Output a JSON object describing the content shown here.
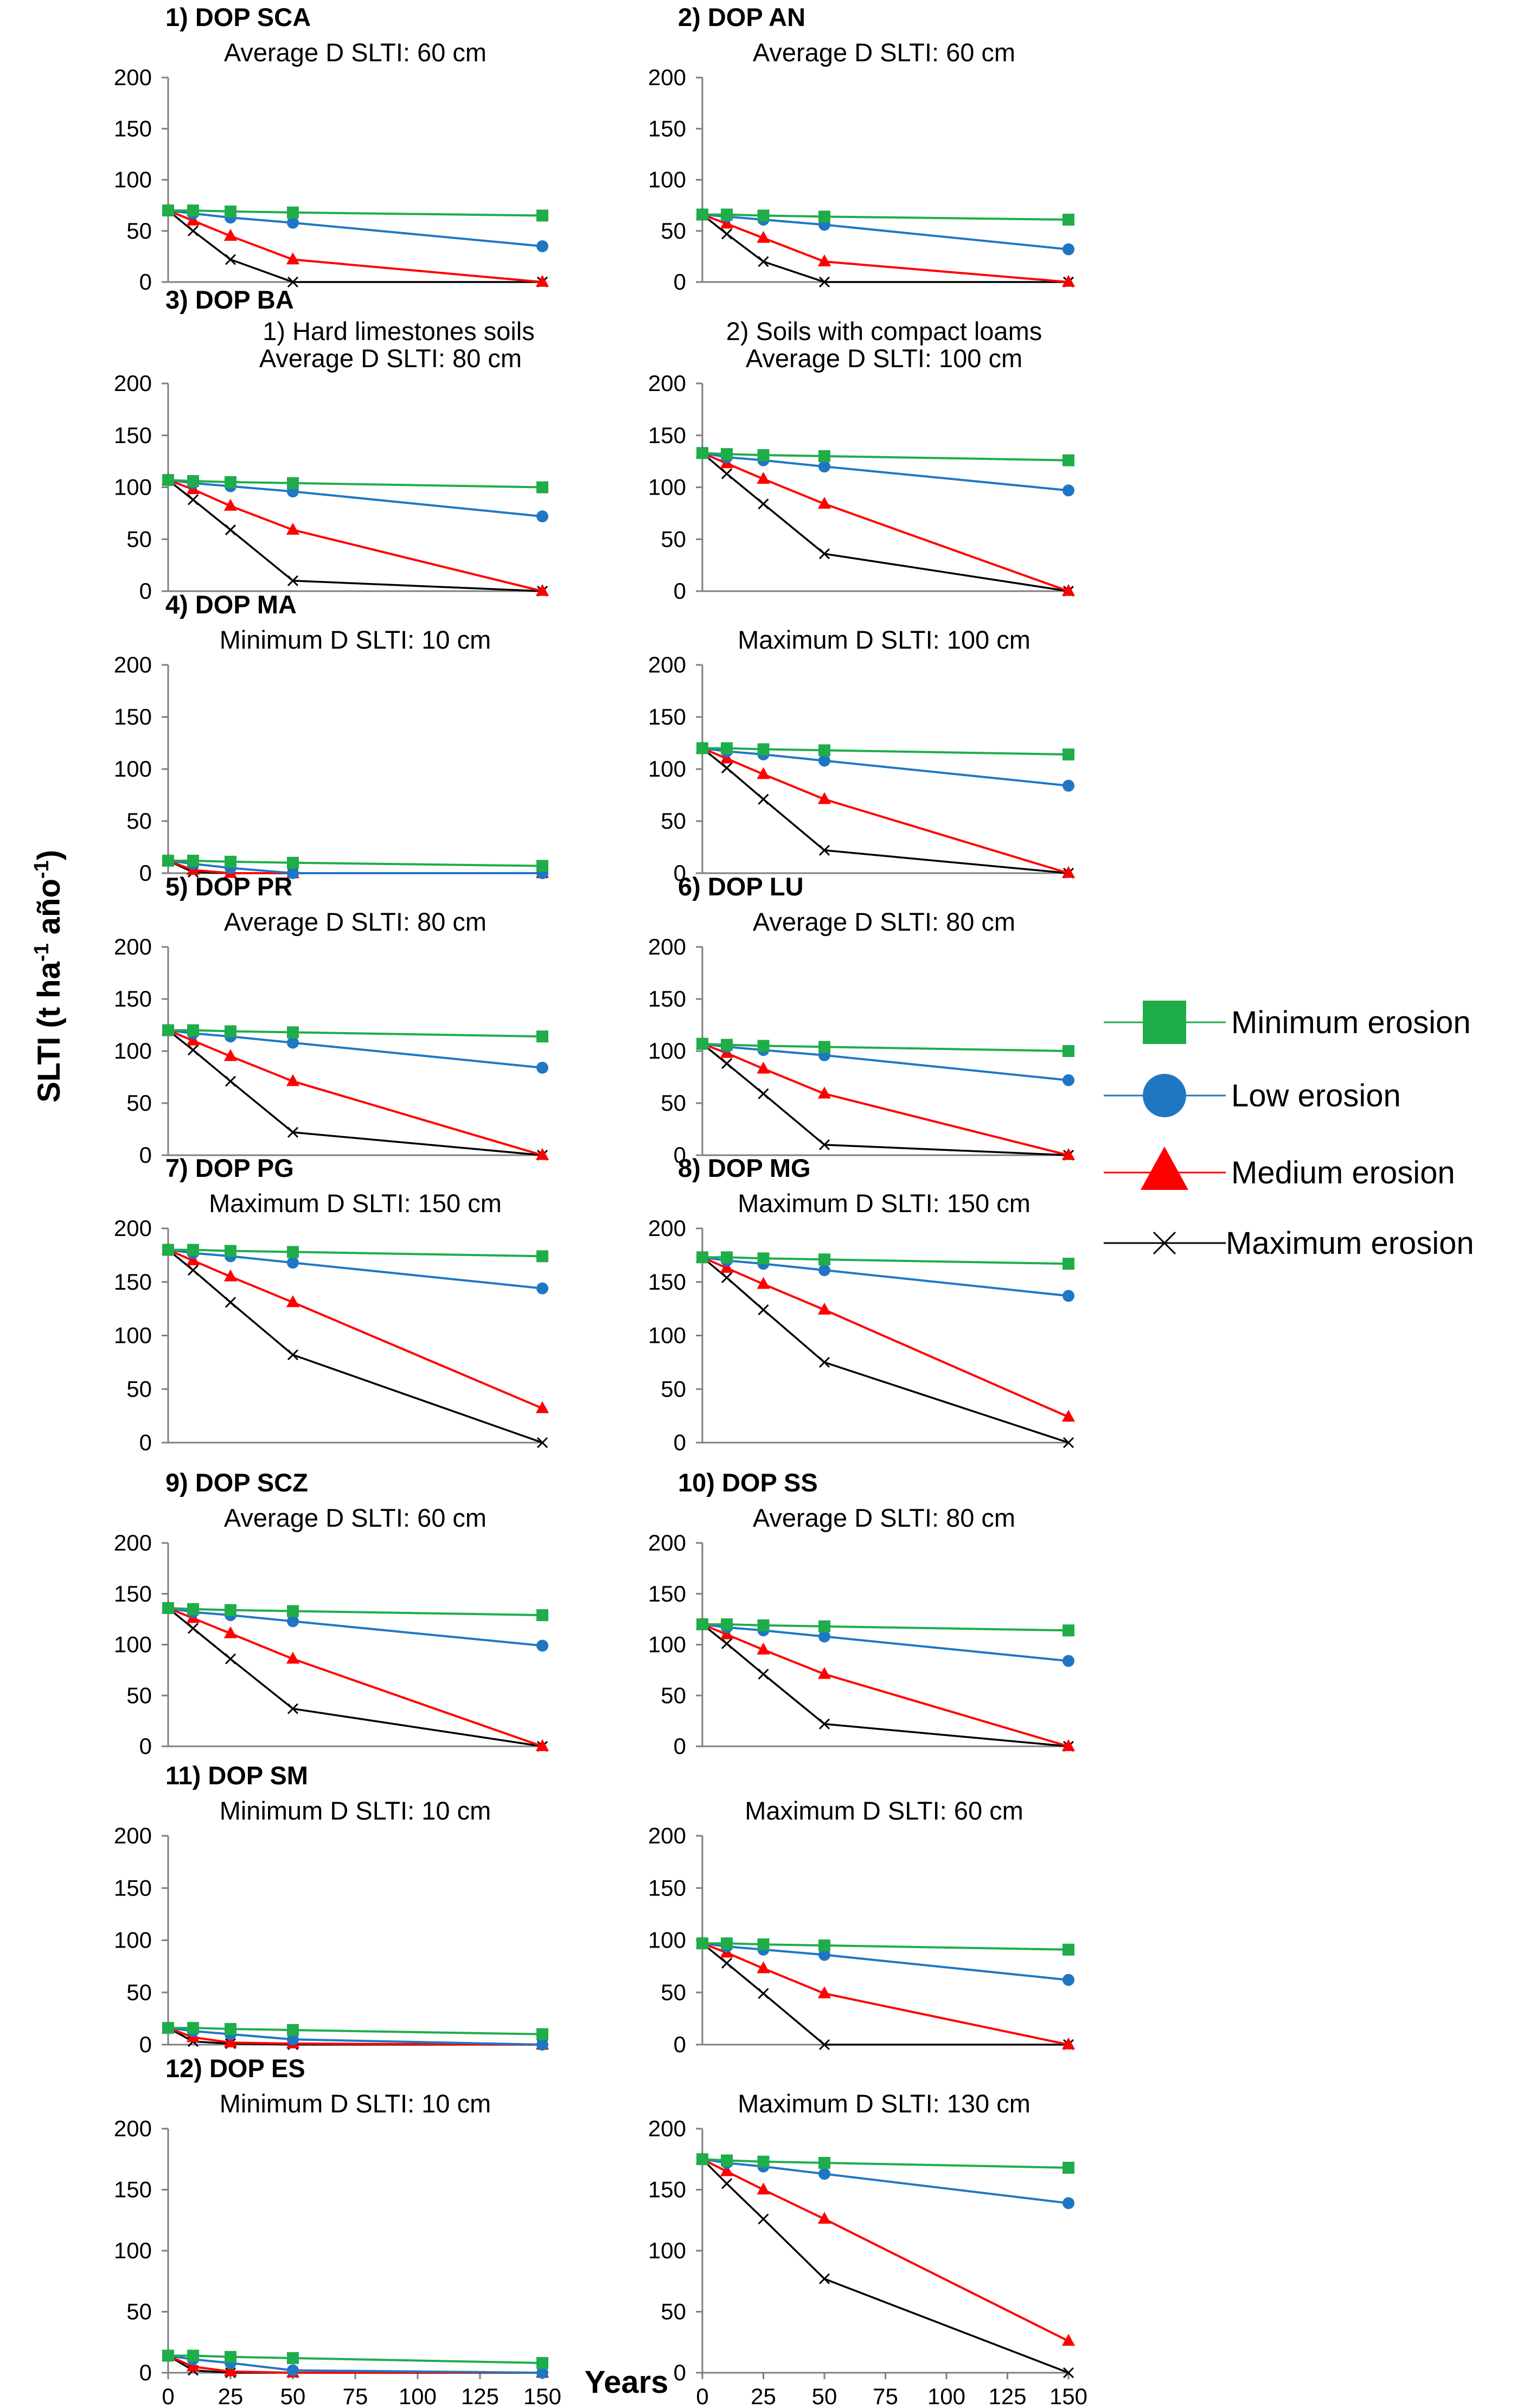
{
  "figure": {
    "ylabel_main": "SLTI (t ha",
    "ylabel_sup1": "-1",
    "ylabel_mid": " año",
    "ylabel_sup2": "-1",
    "ylabel_end": ")",
    "xlabel": "Years"
  },
  "legend": [
    {
      "label": "Minimum erosion",
      "color": "#1fad4a",
      "marker": "square"
    },
    {
      "label": "Low erosion",
      "color": "#1f77c4",
      "marker": "circle"
    },
    {
      "label": "Medium erosion",
      "color": "#ff0000",
      "marker": "triangle"
    },
    {
      "label": "Maximum erosion",
      "color": "#000000",
      "marker": "x"
    }
  ],
  "chart_data": [
    {
      "id": "p1",
      "type": "line",
      "title": "1) DOP SCA",
      "subtitle": "Average D SLTI: 60 cm",
      "x": [
        0,
        10,
        25,
        50,
        150
      ],
      "ylim": [
        0,
        200
      ],
      "yticks": [
        0,
        50,
        100,
        150,
        200
      ],
      "show_xticks": false,
      "series": [
        {
          "name": "Minimum erosion",
          "values": [
            70,
            70,
            69,
            68,
            65
          ]
        },
        {
          "name": "Low erosion",
          "values": [
            70,
            67,
            63,
            58,
            35
          ]
        },
        {
          "name": "Medium erosion",
          "values": [
            70,
            60,
            45,
            22,
            0
          ]
        },
        {
          "name": "Maximum erosion",
          "values": [
            70,
            50,
            22,
            0,
            0
          ]
        }
      ]
    },
    {
      "id": "p2",
      "type": "line",
      "title": "2) DOP AN",
      "subtitle": "Average D SLTI: 60 cm",
      "x": [
        0,
        10,
        25,
        50,
        150
      ],
      "ylim": [
        0,
        200
      ],
      "yticks": [
        0,
        50,
        100,
        150,
        200
      ],
      "show_xticks": false,
      "series": [
        {
          "name": "Minimum erosion",
          "values": [
            66,
            66,
            65,
            64,
            61
          ]
        },
        {
          "name": "Low erosion",
          "values": [
            66,
            64,
            61,
            56,
            32
          ]
        },
        {
          "name": "Medium erosion",
          "values": [
            66,
            57,
            43,
            20,
            0
          ]
        },
        {
          "name": "Maximum erosion",
          "values": [
            66,
            47,
            20,
            0,
            0
          ]
        }
      ]
    },
    {
      "id": "p3a",
      "type": "line",
      "title": "3) DOP BA",
      "subtitle": "1) Hard limestones soils",
      "subtitle2": "Average D SLTI: 80 cm",
      "x": [
        0,
        10,
        25,
        50,
        150
      ],
      "ylim": [
        0,
        200
      ],
      "yticks": [
        0,
        50,
        100,
        150,
        200
      ],
      "show_xticks": false,
      "series": [
        {
          "name": "Minimum erosion",
          "values": [
            107,
            106,
            105,
            104,
            100
          ]
        },
        {
          "name": "Low erosion",
          "values": [
            107,
            104,
            101,
            96,
            72
          ]
        },
        {
          "name": "Medium erosion",
          "values": [
            107,
            98,
            82,
            59,
            0
          ]
        },
        {
          "name": "Maximum erosion",
          "values": [
            107,
            88,
            59,
            10,
            0
          ]
        }
      ]
    },
    {
      "id": "p3b",
      "type": "line",
      "title": "",
      "subtitle": "2) Soils with compact loams",
      "subtitle2": "Average D SLTI: 100 cm",
      "x": [
        0,
        10,
        25,
        50,
        150
      ],
      "ylim": [
        0,
        200
      ],
      "yticks": [
        0,
        50,
        100,
        150,
        200
      ],
      "show_xticks": false,
      "series": [
        {
          "name": "Minimum erosion",
          "values": [
            133,
            132,
            131,
            130,
            126
          ]
        },
        {
          "name": "Low erosion",
          "values": [
            133,
            129,
            126,
            120,
            97
          ]
        },
        {
          "name": "Medium erosion",
          "values": [
            133,
            123,
            108,
            84,
            0
          ]
        },
        {
          "name": "Maximum erosion",
          "values": [
            133,
            113,
            84,
            36,
            0
          ]
        }
      ]
    },
    {
      "id": "p4a",
      "type": "line",
      "title": "4) DOP MA",
      "subtitle": "Minimum D SLTI: 10 cm",
      "x": [
        0,
        10,
        25,
        50,
        150
      ],
      "ylim": [
        0,
        200
      ],
      "yticks": [
        0,
        50,
        100,
        150,
        200
      ],
      "show_xticks": false,
      "series": [
        {
          "name": "Minimum erosion",
          "values": [
            12,
            12,
            11,
            10,
            7
          ]
        },
        {
          "name": "Low erosion",
          "values": [
            12,
            9,
            5,
            0,
            0
          ]
        },
        {
          "name": "Medium erosion",
          "values": [
            12,
            3,
            0,
            0,
            0
          ]
        },
        {
          "name": "Maximum erosion",
          "values": [
            12,
            1,
            0,
            0,
            0
          ]
        }
      ]
    },
    {
      "id": "p4b",
      "type": "line",
      "title": "",
      "subtitle": "Maximum D SLTI: 100 cm",
      "x": [
        0,
        10,
        25,
        50,
        150
      ],
      "ylim": [
        0,
        200
      ],
      "yticks": [
        0,
        50,
        100,
        150,
        200
      ],
      "show_xticks": false,
      "series": [
        {
          "name": "Minimum erosion",
          "values": [
            120,
            120,
            119,
            118,
            114
          ]
        },
        {
          "name": "Low erosion",
          "values": [
            120,
            117,
            114,
            108,
            84
          ]
        },
        {
          "name": "Medium erosion",
          "values": [
            120,
            110,
            95,
            71,
            0
          ]
        },
        {
          "name": "Maximum erosion",
          "values": [
            120,
            101,
            71,
            22,
            0
          ]
        }
      ]
    },
    {
      "id": "p5",
      "type": "line",
      "title": "5) DOP PR",
      "subtitle": "Average D SLTI: 80 cm",
      "x": [
        0,
        10,
        25,
        50,
        150
      ],
      "ylim": [
        0,
        200
      ],
      "yticks": [
        0,
        50,
        100,
        150,
        200
      ],
      "show_xticks": false,
      "series": [
        {
          "name": "Minimum erosion",
          "values": [
            120,
            120,
            119,
            118,
            114
          ]
        },
        {
          "name": "Low erosion",
          "values": [
            120,
            117,
            114,
            108,
            84
          ]
        },
        {
          "name": "Medium erosion",
          "values": [
            120,
            110,
            95,
            71,
            0
          ]
        },
        {
          "name": "Maximum erosion",
          "values": [
            120,
            101,
            71,
            22,
            0
          ]
        }
      ]
    },
    {
      "id": "p6",
      "type": "line",
      "title": "6) DOP LU",
      "subtitle": "Average D SLTI: 80 cm",
      "x": [
        0,
        10,
        25,
        50,
        150
      ],
      "ylim": [
        0,
        200
      ],
      "yticks": [
        0,
        50,
        100,
        150,
        200
      ],
      "show_xticks": false,
      "series": [
        {
          "name": "Minimum erosion",
          "values": [
            107,
            106,
            105,
            104,
            100
          ]
        },
        {
          "name": "Low erosion",
          "values": [
            107,
            104,
            101,
            96,
            72
          ]
        },
        {
          "name": "Medium erosion",
          "values": [
            107,
            98,
            83,
            59,
            0
          ]
        },
        {
          "name": "Maximum erosion",
          "values": [
            107,
            88,
            59,
            10,
            0
          ]
        }
      ]
    },
    {
      "id": "p7",
      "type": "line",
      "title": "7) DOP PG",
      "subtitle": "Maximum D SLTI: 150 cm",
      "x": [
        0,
        10,
        25,
        50,
        150
      ],
      "ylim": [
        0,
        200
      ],
      "yticks": [
        0,
        50,
        100,
        150,
        200
      ],
      "show_xticks": false,
      "series": [
        {
          "name": "Minimum erosion",
          "values": [
            180,
            180,
            179,
            178,
            174
          ]
        },
        {
          "name": "Low erosion",
          "values": [
            180,
            177,
            174,
            168,
            144
          ]
        },
        {
          "name": "Medium erosion",
          "values": [
            180,
            170,
            155,
            131,
            32
          ]
        },
        {
          "name": "Maximum erosion",
          "values": [
            180,
            161,
            131,
            82,
            0
          ]
        }
      ]
    },
    {
      "id": "p8",
      "type": "line",
      "title": "8) DOP MG",
      "subtitle": "Maximum D SLTI: 150 cm",
      "x": [
        0,
        10,
        25,
        50,
        150
      ],
      "ylim": [
        0,
        200
      ],
      "yticks": [
        0,
        50,
        100,
        150,
        200
      ],
      "show_xticks": false,
      "series": [
        {
          "name": "Minimum erosion",
          "values": [
            173,
            173,
            172,
            171,
            167
          ]
        },
        {
          "name": "Low erosion",
          "values": [
            173,
            170,
            167,
            161,
            137
          ]
        },
        {
          "name": "Medium erosion",
          "values": [
            173,
            163,
            148,
            124,
            24
          ]
        },
        {
          "name": "Maximum erosion",
          "values": [
            173,
            154,
            124,
            75,
            0
          ]
        }
      ]
    },
    {
      "id": "p9",
      "type": "line",
      "title": "9) DOP SCZ",
      "subtitle": "Average D SLTI: 60 cm",
      "x": [
        0,
        10,
        25,
        50,
        150
      ],
      "ylim": [
        0,
        200
      ],
      "yticks": [
        0,
        50,
        100,
        150,
        200
      ],
      "show_xticks": false,
      "series": [
        {
          "name": "Minimum erosion",
          "values": [
            136,
            135,
            134,
            133,
            129
          ]
        },
        {
          "name": "Low erosion",
          "values": [
            136,
            132,
            129,
            123,
            99
          ]
        },
        {
          "name": "Medium erosion",
          "values": [
            136,
            126,
            111,
            86,
            0
          ]
        },
        {
          "name": "Maximum erosion",
          "values": [
            136,
            116,
            86,
            37,
            0
          ]
        }
      ]
    },
    {
      "id": "p10",
      "type": "line",
      "title": "10) DOP SS",
      "subtitle": "Average D SLTI: 80 cm",
      "x": [
        0,
        10,
        25,
        50,
        150
      ],
      "ylim": [
        0,
        200
      ],
      "yticks": [
        0,
        50,
        100,
        150,
        200
      ],
      "show_xticks": false,
      "series": [
        {
          "name": "Minimum erosion",
          "values": [
            120,
            120,
            119,
            118,
            114
          ]
        },
        {
          "name": "Low erosion",
          "values": [
            120,
            117,
            114,
            108,
            84
          ]
        },
        {
          "name": "Medium erosion",
          "values": [
            120,
            110,
            95,
            71,
            0
          ]
        },
        {
          "name": "Maximum erosion",
          "values": [
            120,
            101,
            71,
            22,
            0
          ]
        }
      ]
    },
    {
      "id": "p11a",
      "type": "line",
      "title": "11) DOP SM",
      "subtitle": "Minimum D SLTI: 10 cm",
      "x": [
        0,
        10,
        25,
        50,
        150
      ],
      "ylim": [
        0,
        200
      ],
      "yticks": [
        0,
        50,
        100,
        150,
        200
      ],
      "show_xticks": false,
      "series": [
        {
          "name": "Minimum erosion",
          "values": [
            16,
            16,
            15,
            14,
            10
          ]
        },
        {
          "name": "Low erosion",
          "values": [
            16,
            13,
            10,
            5,
            0
          ]
        },
        {
          "name": "Medium erosion",
          "values": [
            16,
            7,
            2,
            1,
            0
          ]
        },
        {
          "name": "Maximum erosion",
          "values": [
            16,
            3,
            1,
            0,
            0
          ]
        }
      ]
    },
    {
      "id": "p11b",
      "type": "line",
      "title": "",
      "subtitle": "Maximum D SLTI: 60 cm",
      "x": [
        0,
        10,
        25,
        50,
        150
      ],
      "ylim": [
        0,
        200
      ],
      "yticks": [
        0,
        50,
        100,
        150,
        200
      ],
      "show_xticks": false,
      "series": [
        {
          "name": "Minimum erosion",
          "values": [
            97,
            97,
            96,
            95,
            91
          ]
        },
        {
          "name": "Low erosion",
          "values": [
            97,
            94,
            91,
            86,
            62
          ]
        },
        {
          "name": "Medium erosion",
          "values": [
            97,
            88,
            73,
            49,
            0
          ]
        },
        {
          "name": "Maximum erosion",
          "values": [
            97,
            78,
            49,
            0,
            0
          ]
        }
      ]
    },
    {
      "id": "p12a",
      "type": "line",
      "title": "12) DOP ES",
      "subtitle": "Minimum D SLTI: 10 cm",
      "x": [
        0,
        10,
        25,
        50,
        150
      ],
      "ylim": [
        0,
        200
      ],
      "yticks": [
        0,
        50,
        100,
        150,
        200
      ],
      "show_xticks": true,
      "xticks": [
        0,
        25,
        50,
        75,
        100,
        125,
        150
      ],
      "series": [
        {
          "name": "Minimum erosion",
          "values": [
            14,
            14,
            13,
            12,
            8
          ]
        },
        {
          "name": "Low erosion",
          "values": [
            14,
            11,
            8,
            2,
            0
          ]
        },
        {
          "name": "Medium erosion",
          "values": [
            14,
            5,
            1,
            0,
            0
          ]
        },
        {
          "name": "Maximum erosion",
          "values": [
            14,
            2,
            0,
            0,
            0
          ]
        }
      ]
    },
    {
      "id": "p12b",
      "type": "line",
      "title": "",
      "subtitle": "Maximum D SLTI: 130 cm",
      "x": [
        0,
        10,
        25,
        50,
        150
      ],
      "ylim": [
        0,
        200
      ],
      "yticks": [
        0,
        50,
        100,
        150,
        200
      ],
      "show_xticks": true,
      "xticks": [
        0,
        25,
        50,
        75,
        100,
        125,
        150
      ],
      "series": [
        {
          "name": "Minimum erosion",
          "values": [
            175,
            174,
            173,
            172,
            168
          ]
        },
        {
          "name": "Low erosion",
          "values": [
            175,
            172,
            169,
            163,
            139
          ]
        },
        {
          "name": "Medium erosion",
          "values": [
            175,
            165,
            150,
            126,
            26
          ]
        },
        {
          "name": "Maximum erosion",
          "values": [
            175,
            155,
            126,
            77,
            0
          ]
        }
      ]
    }
  ]
}
